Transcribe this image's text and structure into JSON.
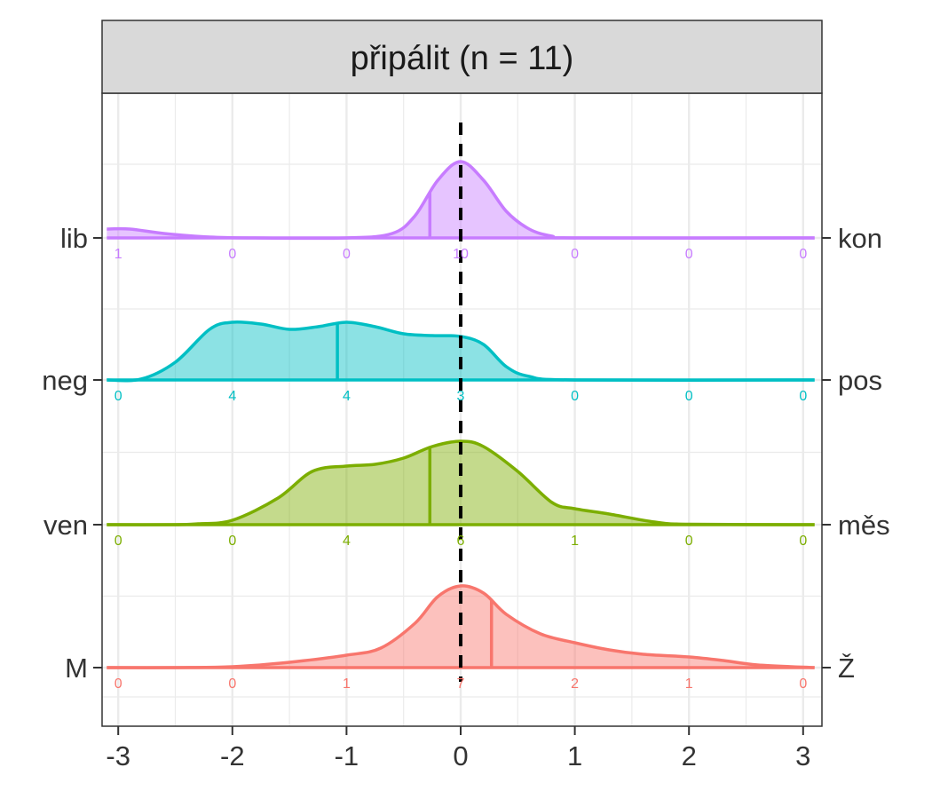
{
  "chart_data": {
    "type": "area",
    "title": "",
    "xlabel": "",
    "ylabel": "",
    "facet_label": "připálit (n = 11)",
    "xlim": [
      -3.1,
      3.1
    ],
    "x_ticks": [
      -3,
      -2,
      -1,
      0,
      1,
      2,
      3
    ],
    "x_tick_labels": [
      "-3",
      "-2",
      "-1",
      "0",
      "1",
      "2",
      "3"
    ],
    "reference_line_x": 0,
    "grid": true,
    "count_x": [
      -3,
      -2,
      -1,
      0,
      1,
      2,
      3
    ],
    "series": [
      {
        "left_label": "M",
        "right_label": "Ž",
        "color": "#F8766D",
        "mean": 0.27,
        "counts": [
          "0",
          "0",
          "1",
          "7",
          "2",
          "1",
          "0"
        ],
        "density": [
          [
            -3.1,
            0
          ],
          [
            -2.5,
            0
          ],
          [
            -2,
            0.01
          ],
          [
            -1.5,
            0.06
          ],
          [
            -1,
            0.14
          ],
          [
            -0.7,
            0.22
          ],
          [
            -0.4,
            0.5
          ],
          [
            -0.2,
            0.8
          ],
          [
            0,
            0.92
          ],
          [
            0.2,
            0.84
          ],
          [
            0.4,
            0.6
          ],
          [
            0.7,
            0.38
          ],
          [
            1,
            0.28
          ],
          [
            1.3,
            0.2
          ],
          [
            1.6,
            0.15
          ],
          [
            2,
            0.12
          ],
          [
            2.3,
            0.08
          ],
          [
            2.6,
            0.03
          ],
          [
            3.1,
            0
          ]
        ]
      },
      {
        "left_label": "ven",
        "right_label": "měs",
        "color": "#7CAE00",
        "mean": -0.27,
        "counts": [
          "0",
          "0",
          "4",
          "6",
          "1",
          "0",
          "0"
        ],
        "density": [
          [
            -3.1,
            0
          ],
          [
            -2.5,
            0
          ],
          [
            -2.3,
            0.01
          ],
          [
            -2,
            0.05
          ],
          [
            -1.6,
            0.3
          ],
          [
            -1.3,
            0.6
          ],
          [
            -1,
            0.66
          ],
          [
            -0.75,
            0.68
          ],
          [
            -0.5,
            0.75
          ],
          [
            -0.25,
            0.88
          ],
          [
            0,
            0.94
          ],
          [
            0.2,
            0.88
          ],
          [
            0.5,
            0.6
          ],
          [
            0.8,
            0.25
          ],
          [
            1,
            0.18
          ],
          [
            1.3,
            0.12
          ],
          [
            1.7,
            0.03
          ],
          [
            2,
            0.005
          ],
          [
            3.1,
            0
          ]
        ]
      },
      {
        "left_label": "neg",
        "right_label": "pos",
        "color": "#00BFC4",
        "mean": -1.08,
        "counts": [
          "0",
          "4",
          "4",
          "3",
          "0",
          "0",
          "0"
        ],
        "density": [
          [
            -3.1,
            0
          ],
          [
            -2.8,
            0.01
          ],
          [
            -2.5,
            0.2
          ],
          [
            -2.2,
            0.57
          ],
          [
            -2,
            0.65
          ],
          [
            -1.75,
            0.63
          ],
          [
            -1.5,
            0.57
          ],
          [
            -1.25,
            0.6
          ],
          [
            -1,
            0.65
          ],
          [
            -0.75,
            0.6
          ],
          [
            -0.5,
            0.52
          ],
          [
            -0.25,
            0.5
          ],
          [
            0,
            0.49
          ],
          [
            0.2,
            0.4
          ],
          [
            0.4,
            0.15
          ],
          [
            0.6,
            0.04
          ],
          [
            1,
            0
          ],
          [
            3.1,
            0
          ]
        ]
      },
      {
        "left_label": "lib",
        "right_label": "kon",
        "color": "#C77CFF",
        "mean": -0.27,
        "counts": [
          "1",
          "0",
          "0",
          "10",
          "0",
          "0",
          "0"
        ],
        "density": [
          [
            -3.1,
            0.1
          ],
          [
            -2.9,
            0.1
          ],
          [
            -2.6,
            0.05
          ],
          [
            -2.2,
            0.01
          ],
          [
            -1.8,
            0
          ],
          [
            -1,
            0
          ],
          [
            -0.6,
            0.05
          ],
          [
            -0.4,
            0.25
          ],
          [
            -0.2,
            0.65
          ],
          [
            0,
            0.86
          ],
          [
            0.2,
            0.65
          ],
          [
            0.4,
            0.3
          ],
          [
            0.6,
            0.1
          ],
          [
            0.8,
            0.02
          ],
          [
            1,
            0
          ],
          [
            3.1,
            0
          ]
        ]
      }
    ]
  }
}
